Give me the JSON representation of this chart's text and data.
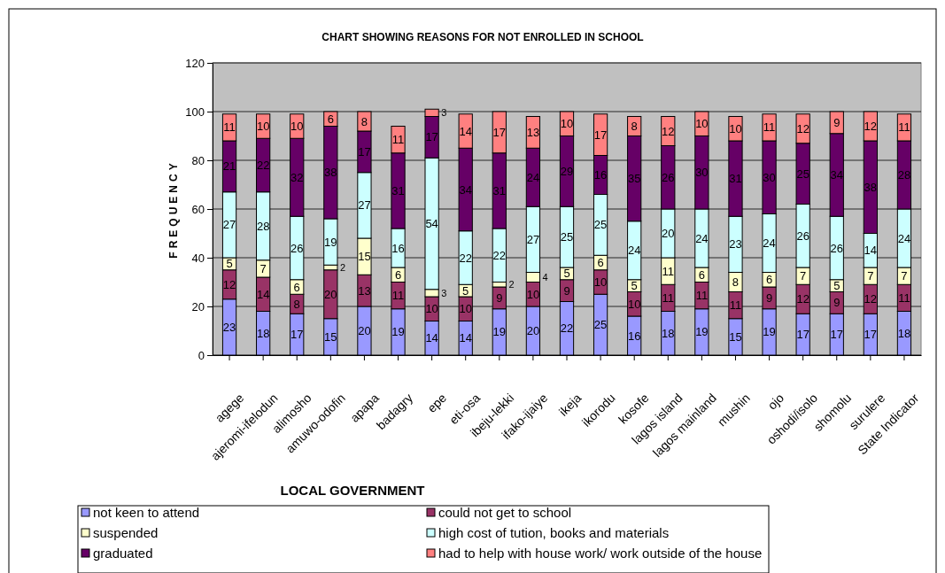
{
  "chart_data": {
    "type": "bar",
    "stacked": true,
    "title": "CHART SHOWING REASONS FOR NOT ENROLLED IN SCHOOL",
    "xlabel": "LOCAL GOVERNMENT",
    "ylabel": "FREQUENCY",
    "categories": [
      "agege",
      "ajeromi-ifelodun",
      "alimosho",
      "amuwo-odofin",
      "apapa",
      "badagry",
      "epe",
      "eti-osa",
      "ibeju-lekki",
      "ifako-ijaiye",
      "ikeja",
      "ikorodu",
      "kosofe",
      "lagos island",
      "lagos mainland",
      "mushin",
      "ojo",
      "oshodi/isolo",
      "shomolu",
      "surulere",
      "State Indicator"
    ],
    "series": [
      {
        "name": "not keen to attend",
        "color": "#9999ff",
        "values": [
          23,
          18,
          17,
          15,
          20,
          19,
          14,
          14,
          19,
          20,
          22,
          25,
          16,
          18,
          19,
          15,
          19,
          17,
          17,
          17,
          18
        ]
      },
      {
        "name": "could not get to school",
        "color": "#993366",
        "values": [
          12,
          14,
          8,
          20,
          13,
          11,
          10,
          10,
          9,
          10,
          9,
          10,
          10,
          11,
          11,
          11,
          9,
          12,
          9,
          12,
          11
        ]
      },
      {
        "name": "suspended",
        "color": "#ffffcc",
        "values": [
          5,
          7,
          6,
          2,
          15,
          6,
          3,
          5,
          2,
          4,
          5,
          6,
          5,
          11,
          6,
          8,
          6,
          7,
          5,
          7,
          7
        ]
      },
      {
        "name": "high cost of tution, books and materials",
        "color": "#ccffff",
        "values": [
          27,
          28,
          26,
          19,
          27,
          16,
          54,
          22,
          22,
          27,
          25,
          25,
          24,
          20,
          24,
          23,
          24,
          26,
          26,
          14,
          24
        ]
      },
      {
        "name": "graduated",
        "color": "#660066",
        "values": [
          21,
          22,
          32,
          38,
          17,
          31,
          17,
          34,
          31,
          24,
          29,
          16,
          35,
          26,
          30,
          31,
          30,
          25,
          34,
          38,
          28
        ]
      },
      {
        "name": "had to help with house work/ work outside of the house",
        "color": "#ff8080",
        "values": [
          11,
          10,
          10,
          6,
          8,
          11,
          3,
          14,
          17,
          13,
          10,
          17,
          8,
          12,
          10,
          10,
          11,
          12,
          9,
          12,
          11
        ]
      }
    ],
    "ylim": [
      0,
      120
    ],
    "yticks": [
      0,
      20,
      40,
      60,
      80,
      100,
      120
    ],
    "grid": "y",
    "legend": "bottom",
    "data_labels": true
  }
}
